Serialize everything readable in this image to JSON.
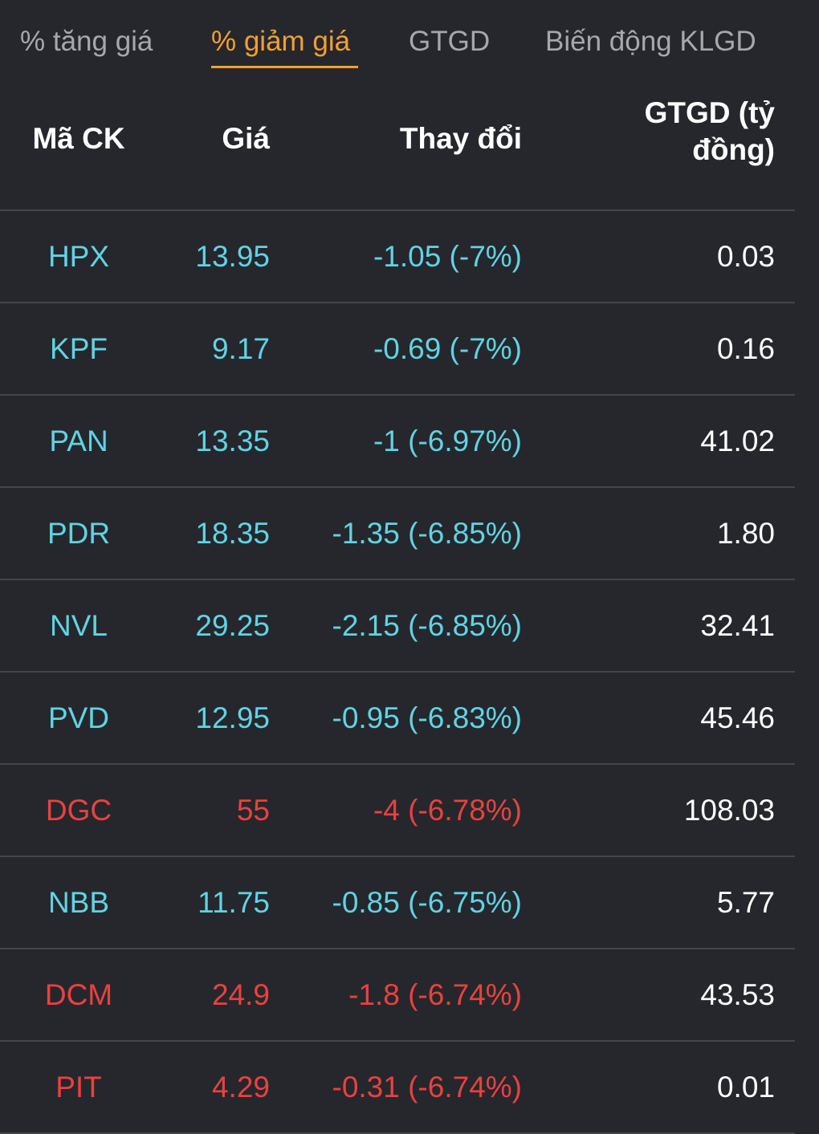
{
  "colors": {
    "background": "#26272c",
    "tab_inactive": "#a7a8ad",
    "tab_active": "#f0a030",
    "floor_price": "#5fd4e4",
    "decrease": "#e8423f",
    "divider": "#45464c",
    "text": "#ffffff"
  },
  "tabs": [
    {
      "label": "% tăng giá",
      "active": false
    },
    {
      "label": "% giảm giá",
      "active": true
    },
    {
      "label": "GTGD",
      "active": false
    },
    {
      "label": "Biến động KLGD",
      "active": false
    }
  ],
  "table": {
    "headers": {
      "code": "Mã CK",
      "price": "Giá",
      "change": "Thay đổi",
      "value_line1": "GTGD (tỷ",
      "value_line2": "đồng)"
    },
    "rows": [
      {
        "code": "HPX",
        "price": "13.95",
        "change": "-1.05 (-7%)",
        "value": "0.03",
        "status": "floor"
      },
      {
        "code": "KPF",
        "price": "9.17",
        "change": "-0.69 (-7%)",
        "value": "0.16",
        "status": "floor"
      },
      {
        "code": "PAN",
        "price": "13.35",
        "change": "-1 (-6.97%)",
        "value": "41.02",
        "status": "floor"
      },
      {
        "code": "PDR",
        "price": "18.35",
        "change": "-1.35 (-6.85%)",
        "value": "1.80",
        "status": "floor"
      },
      {
        "code": "NVL",
        "price": "29.25",
        "change": "-2.15 (-6.85%)",
        "value": "32.41",
        "status": "floor"
      },
      {
        "code": "PVD",
        "price": "12.95",
        "change": "-0.95 (-6.83%)",
        "value": "45.46",
        "status": "floor"
      },
      {
        "code": "DGC",
        "price": "55",
        "change": "-4 (-6.78%)",
        "value": "108.03",
        "status": "decrease"
      },
      {
        "code": "NBB",
        "price": "11.75",
        "change": "-0.85 (-6.75%)",
        "value": "5.77",
        "status": "floor"
      },
      {
        "code": "DCM",
        "price": "24.9",
        "change": "-1.8 (-6.74%)",
        "value": "43.53",
        "status": "decrease"
      },
      {
        "code": "PIT",
        "price": "4.29",
        "change": "-0.31 (-6.74%)",
        "value": "0.01",
        "status": "decrease"
      }
    ]
  }
}
